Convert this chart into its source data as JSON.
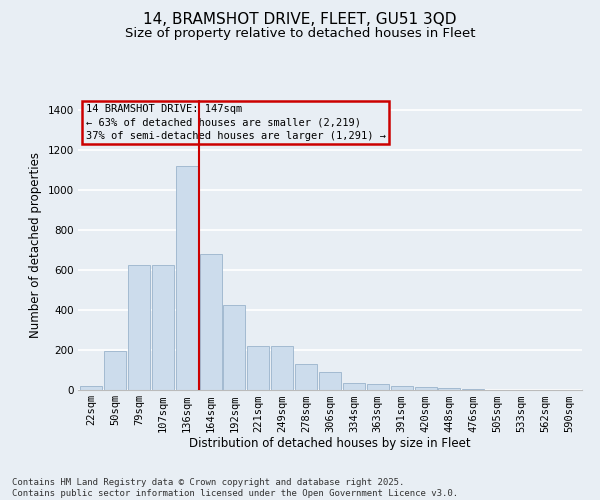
{
  "title_line1": "14, BRAMSHOT DRIVE, FLEET, GU51 3QD",
  "title_line2": "Size of property relative to detached houses in Fleet",
  "xlabel": "Distribution of detached houses by size in Fleet",
  "ylabel": "Number of detached properties",
  "categories": [
    "22sqm",
    "50sqm",
    "79sqm",
    "107sqm",
    "136sqm",
    "164sqm",
    "192sqm",
    "221sqm",
    "249sqm",
    "278sqm",
    "306sqm",
    "334sqm",
    "363sqm",
    "391sqm",
    "420sqm",
    "448sqm",
    "476sqm",
    "505sqm",
    "533sqm",
    "562sqm",
    "590sqm"
  ],
  "values": [
    20,
    195,
    625,
    625,
    1120,
    680,
    425,
    220,
    220,
    130,
    90,
    35,
    30,
    18,
    14,
    8,
    5,
    0,
    0,
    0,
    0
  ],
  "bar_color": "#ccdcec",
  "bar_edge_color": "#9ab4cc",
  "vline_color": "#cc0000",
  "vline_x": 4.5,
  "annotation_text": "14 BRAMSHOT DRIVE: 147sqm\n← 63% of detached houses are smaller (2,219)\n37% of semi-detached houses are larger (1,291) →",
  "annotation_box_color": "#cc0000",
  "background_color": "#e8eef4",
  "grid_color": "#ffffff",
  "ylim": [
    0,
    1450
  ],
  "yticks": [
    0,
    200,
    400,
    600,
    800,
    1000,
    1200,
    1400
  ],
  "footer_text": "Contains HM Land Registry data © Crown copyright and database right 2025.\nContains public sector information licensed under the Open Government Licence v3.0.",
  "title_fontsize": 11,
  "subtitle_fontsize": 9.5,
  "axis_label_fontsize": 8.5,
  "tick_fontsize": 7.5,
  "annotation_fontsize": 7.5
}
